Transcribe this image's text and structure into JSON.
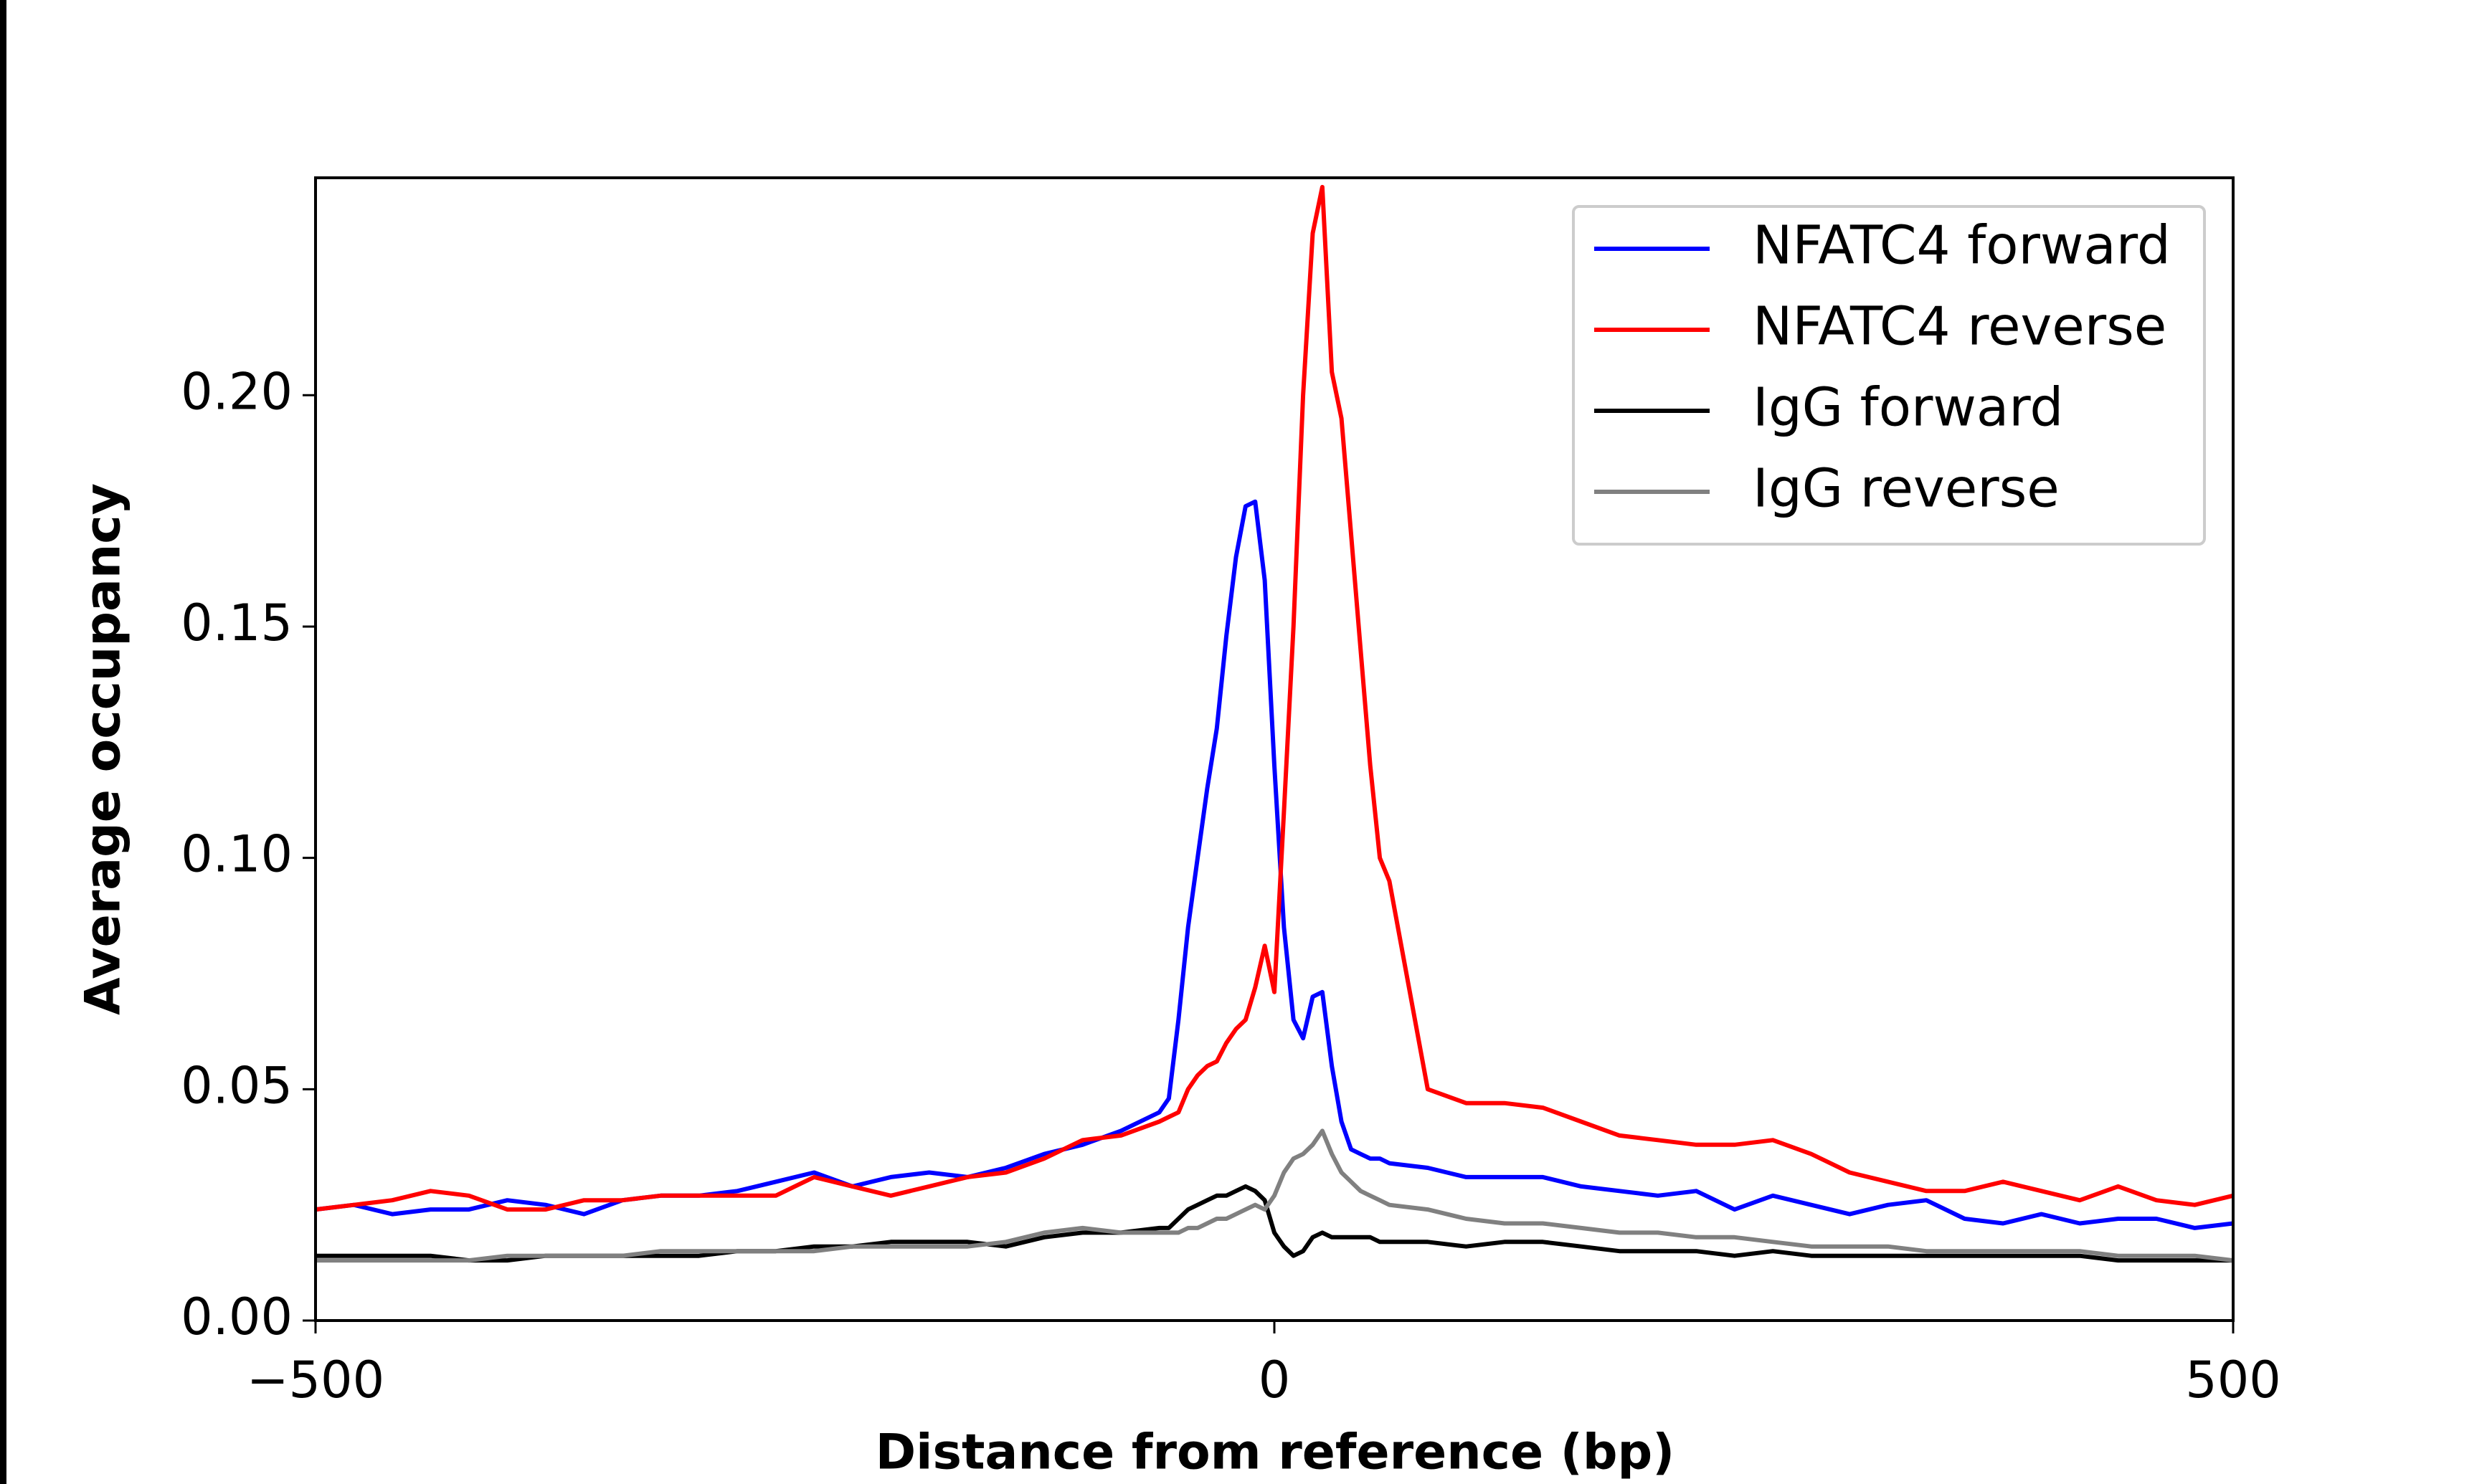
{
  "chart_data": {
    "type": "line",
    "xlabel": "Distance from reference (bp)",
    "ylabel": "Average occupancy",
    "x": [
      -500,
      -480,
      -460,
      -440,
      -420,
      -400,
      -380,
      -360,
      -340,
      -320,
      -300,
      -280,
      -260,
      -240,
      -220,
      -200,
      -180,
      -160,
      -140,
      -120,
      -100,
      -80,
      -60,
      -55,
      -50,
      -45,
      -40,
      -35,
      -30,
      -25,
      -20,
      -15,
      -10,
      -5,
      0,
      5,
      10,
      15,
      20,
      25,
      30,
      35,
      40,
      45,
      50,
      55,
      60,
      80,
      100,
      120,
      140,
      160,
      180,
      200,
      220,
      240,
      260,
      280,
      300,
      320,
      340,
      360,
      380,
      400,
      420,
      440,
      460,
      480,
      500
    ],
    "series": [
      {
        "name": "NFATC4 forward",
        "color": "#0000ff",
        "values": [
          0.024,
          0.025,
          0.023,
          0.024,
          0.024,
          0.026,
          0.025,
          0.023,
          0.026,
          0.027,
          0.027,
          0.028,
          0.03,
          0.032,
          0.029,
          0.031,
          0.032,
          0.031,
          0.033,
          0.036,
          0.038,
          0.041,
          0.045,
          0.048,
          0.065,
          0.085,
          0.1,
          0.115,
          0.128,
          0.148,
          0.165,
          0.176,
          0.177,
          0.16,
          0.12,
          0.085,
          0.065,
          0.061,
          0.07,
          0.071,
          0.055,
          0.043,
          0.037,
          0.036,
          0.035,
          0.035,
          0.034,
          0.033,
          0.031,
          0.031,
          0.031,
          0.029,
          0.028,
          0.027,
          0.028,
          0.024,
          0.027,
          0.025,
          0.023,
          0.025,
          0.026,
          0.022,
          0.021,
          0.023,
          0.021,
          0.022,
          0.022,
          0.02,
          0.021
        ]
      },
      {
        "name": "NFATC4 reverse",
        "color": "#ff0000",
        "values": [
          0.024,
          0.025,
          0.026,
          0.028,
          0.027,
          0.024,
          0.024,
          0.026,
          0.026,
          0.027,
          0.027,
          0.027,
          0.027,
          0.031,
          0.029,
          0.027,
          0.029,
          0.031,
          0.032,
          0.035,
          0.039,
          0.04,
          0.043,
          0.044,
          0.045,
          0.05,
          0.053,
          0.055,
          0.056,
          0.06,
          0.063,
          0.065,
          0.072,
          0.081,
          0.071,
          0.11,
          0.15,
          0.2,
          0.235,
          0.245,
          0.205,
          0.195,
          0.17,
          0.145,
          0.12,
          0.1,
          0.095,
          0.05,
          0.047,
          0.047,
          0.046,
          0.043,
          0.04,
          0.039,
          0.038,
          0.038,
          0.039,
          0.036,
          0.032,
          0.03,
          0.028,
          0.028,
          0.03,
          0.028,
          0.026,
          0.029,
          0.026,
          0.025,
          0.027
        ]
      },
      {
        "name": "IgG forward",
        "color": "#000000",
        "values": [
          0.014,
          0.014,
          0.014,
          0.014,
          0.013,
          0.013,
          0.014,
          0.014,
          0.014,
          0.014,
          0.014,
          0.015,
          0.015,
          0.016,
          0.016,
          0.017,
          0.017,
          0.017,
          0.016,
          0.018,
          0.019,
          0.019,
          0.02,
          0.02,
          0.022,
          0.024,
          0.025,
          0.026,
          0.027,
          0.027,
          0.028,
          0.029,
          0.028,
          0.026,
          0.019,
          0.016,
          0.014,
          0.015,
          0.018,
          0.019,
          0.018,
          0.018,
          0.018,
          0.018,
          0.018,
          0.017,
          0.017,
          0.017,
          0.016,
          0.017,
          0.017,
          0.016,
          0.015,
          0.015,
          0.015,
          0.014,
          0.015,
          0.014,
          0.014,
          0.014,
          0.014,
          0.014,
          0.014,
          0.014,
          0.014,
          0.013,
          0.013,
          0.013,
          0.013
        ]
      },
      {
        "name": "IgG reverse",
        "color": "#808080",
        "values": [
          0.013,
          0.013,
          0.013,
          0.013,
          0.013,
          0.014,
          0.014,
          0.014,
          0.014,
          0.015,
          0.015,
          0.015,
          0.015,
          0.015,
          0.016,
          0.016,
          0.016,
          0.016,
          0.017,
          0.019,
          0.02,
          0.019,
          0.019,
          0.019,
          0.019,
          0.02,
          0.02,
          0.021,
          0.022,
          0.022,
          0.023,
          0.024,
          0.025,
          0.024,
          0.027,
          0.032,
          0.035,
          0.036,
          0.038,
          0.041,
          0.036,
          0.032,
          0.03,
          0.028,
          0.027,
          0.026,
          0.025,
          0.024,
          0.022,
          0.021,
          0.021,
          0.02,
          0.019,
          0.019,
          0.018,
          0.018,
          0.017,
          0.016,
          0.016,
          0.016,
          0.015,
          0.015,
          0.015,
          0.015,
          0.015,
          0.014,
          0.014,
          0.014,
          0.013
        ]
      }
    ],
    "xlim": [
      -500,
      500
    ],
    "xticks": [
      {
        "value": -500,
        "label": "−500"
      },
      0,
      500
    ],
    "ylim": [
      0,
      0.247
    ],
    "yticks": [
      {
        "value": 0,
        "label": "0.00"
      },
      0.05,
      {
        "value": 0.1,
        "label": "0.10"
      },
      0.15,
      {
        "value": 0.2,
        "label": "0.20"
      }
    ],
    "grid": false,
    "legend": "upper right"
  }
}
